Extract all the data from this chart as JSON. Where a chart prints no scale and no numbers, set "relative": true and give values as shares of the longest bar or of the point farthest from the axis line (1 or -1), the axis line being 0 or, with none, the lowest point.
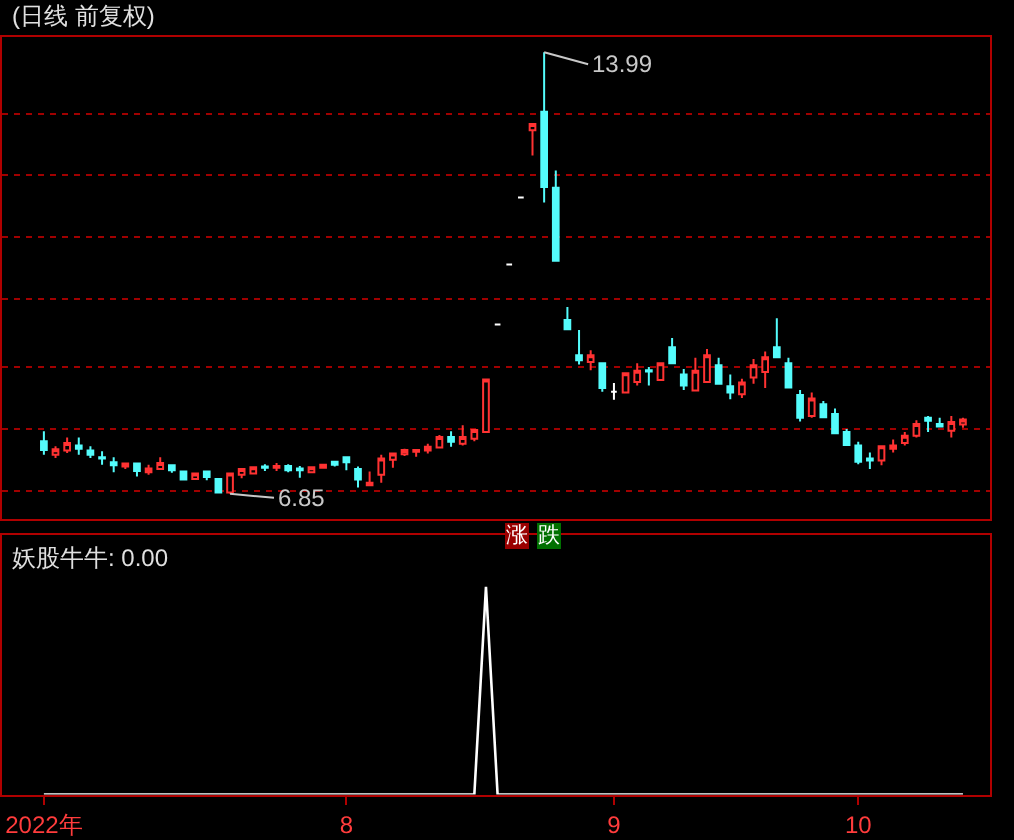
{
  "chart_data": [
    {
      "type": "candlestick",
      "title": "(日线 前复权)",
      "categories": [
        null,
        null,
        null,
        null,
        null,
        null,
        null,
        null,
        null,
        null,
        null,
        null,
        null,
        null,
        null,
        null,
        null,
        null,
        null,
        null,
        null,
        null,
        null,
        null,
        null,
        null,
        null,
        null,
        null,
        null,
        null,
        null,
        null,
        null,
        null,
        null,
        null,
        null,
        null,
        null,
        null,
        null,
        null,
        null,
        null,
        null,
        null,
        null,
        null,
        null,
        null,
        null,
        null,
        null,
        null,
        null,
        null,
        null,
        null,
        null,
        null,
        null,
        null,
        null,
        null,
        null,
        null,
        null,
        null,
        null,
        null,
        null,
        null,
        null,
        null,
        null,
        null,
        null,
        null,
        null
      ],
      "ohlc": [
        [
          7.7,
          7.86,
          7.48,
          7.56
        ],
        [
          7.48,
          7.62,
          7.43,
          7.57
        ],
        [
          7.55,
          7.76,
          7.51,
          7.67
        ],
        [
          7.63,
          7.76,
          7.48,
          7.58
        ],
        [
          7.55,
          7.62,
          7.43,
          7.48
        ],
        [
          7.44,
          7.54,
          7.32,
          7.42
        ],
        [
          7.36,
          7.44,
          7.2,
          7.31
        ],
        [
          7.29,
          7.34,
          7.25,
          7.34
        ],
        [
          7.34,
          7.34,
          7.13,
          7.22
        ],
        [
          7.2,
          7.32,
          7.16,
          7.26
        ],
        [
          7.25,
          7.44,
          7.25,
          7.35
        ],
        [
          7.31,
          7.31,
          7.19,
          7.23
        ],
        [
          7.21,
          7.21,
          7.08,
          7.08
        ],
        [
          7.09,
          7.18,
          7.09,
          7.18
        ],
        [
          7.21,
          7.21,
          7.07,
          7.12
        ],
        [
          7.09,
          7.09,
          6.87,
          6.87
        ],
        [
          6.87,
          7.18,
          6.85,
          7.18
        ],
        [
          7.16,
          7.25,
          7.1,
          7.25
        ],
        [
          7.18,
          7.28,
          7.18,
          7.28
        ],
        [
          7.29,
          7.33,
          7.22,
          7.27
        ],
        [
          7.27,
          7.35,
          7.22,
          7.3
        ],
        [
          7.3,
          7.33,
          7.2,
          7.23
        ],
        [
          7.26,
          7.3,
          7.11,
          7.23
        ],
        [
          7.2,
          7.28,
          7.2,
          7.28
        ],
        [
          7.27,
          7.32,
          7.27,
          7.32
        ],
        [
          7.37,
          7.37,
          7.29,
          7.32
        ],
        [
          7.44,
          7.44,
          7.23,
          7.36
        ],
        [
          7.25,
          7.29,
          6.95,
          7.08
        ],
        [
          6.99,
          7.21,
          6.99,
          7.03
        ],
        [
          7.16,
          7.48,
          7.03,
          7.42
        ],
        [
          7.4,
          7.5,
          7.27,
          7.5
        ],
        [
          7.49,
          7.58,
          7.46,
          7.56
        ],
        [
          7.53,
          7.56,
          7.45,
          7.56
        ],
        [
          7.55,
          7.66,
          7.5,
          7.61
        ],
        [
          7.6,
          7.8,
          7.6,
          7.77
        ],
        [
          7.77,
          7.86,
          7.61,
          7.69
        ],
        [
          7.66,
          7.96,
          7.63,
          7.77
        ],
        [
          7.74,
          7.88,
          7.7,
          7.88
        ],
        [
          7.85,
          8.7,
          7.85,
          8.7
        ],
        [
          9.59,
          9.59,
          9.59,
          9.59
        ],
        [
          10.56,
          10.56,
          10.56,
          10.56
        ],
        [
          11.64,
          11.64,
          11.64,
          11.64
        ],
        [
          12.73,
          12.83,
          12.32,
          12.83
        ],
        [
          13.03,
          13.99,
          11.56,
          11.81
        ],
        [
          11.8,
          12.08,
          10.62,
          10.62
        ],
        [
          9.66,
          9.87,
          9.51,
          9.51
        ],
        [
          9.09,
          9.5,
          8.94,
          9.01
        ],
        [
          8.98,
          9.17,
          8.85,
          9.09
        ],
        [
          8.96,
          8.96,
          8.5,
          8.56
        ],
        [
          8.5,
          8.64,
          8.37,
          8.5
        ],
        [
          8.49,
          8.8,
          8.49,
          8.8
        ],
        [
          8.66,
          8.96,
          8.6,
          8.84
        ],
        [
          8.85,
          8.9,
          8.6,
          8.83
        ],
        [
          8.69,
          8.96,
          8.69,
          8.96
        ],
        [
          9.22,
          9.37,
          8.96,
          8.96
        ],
        [
          8.78,
          8.87,
          8.53,
          8.6
        ],
        [
          8.52,
          9.05,
          8.52,
          8.84
        ],
        [
          8.66,
          9.19,
          8.66,
          9.09
        ],
        [
          8.93,
          9.05,
          8.63,
          8.63
        ],
        [
          8.59,
          8.78,
          8.38,
          8.49
        ],
        [
          8.46,
          8.71,
          8.4,
          8.65
        ],
        [
          8.73,
          9.03,
          8.63,
          8.93
        ],
        [
          8.82,
          9.15,
          8.56,
          9.06
        ],
        [
          9.22,
          9.69,
          9.06,
          9.06
        ],
        [
          8.96,
          9.05,
          8.57,
          8.57
        ],
        [
          8.45,
          8.53,
          8.02,
          8.08
        ],
        [
          8.11,
          8.49,
          8.08,
          8.39
        ],
        [
          8.3,
          8.35,
          8.09,
          8.09
        ],
        [
          8.14,
          8.23,
          7.83,
          7.83
        ],
        [
          7.85,
          7.9,
          7.64,
          7.64
        ],
        [
          7.63,
          7.69,
          7.33,
          7.37
        ],
        [
          7.42,
          7.52,
          7.25,
          7.39
        ],
        [
          7.39,
          7.62,
          7.31,
          7.62
        ],
        [
          7.58,
          7.73,
          7.52,
          7.63
        ],
        [
          7.67,
          7.85,
          7.63,
          7.79
        ],
        [
          7.79,
          8.04,
          7.76,
          7.98
        ],
        [
          8.08,
          8.11,
          7.85,
          8.03
        ],
        [
          7.98,
          8.08,
          7.94,
          7.94
        ],
        [
          7.87,
          8.11,
          7.76,
          8.01
        ],
        [
          7.97,
          8.08,
          7.92,
          8.05
        ]
      ],
      "colors": [
        "#54fcfc",
        "#ff3232",
        "#ff3232",
        "#54fcfc",
        "#54fcfc",
        "#54fcfc",
        "#54fcfc",
        "#ff3232",
        "#54fcfc",
        "#ff3232",
        "#ff3232",
        "#54fcfc",
        "#54fcfc",
        "#ff3232",
        "#54fcfc",
        "#54fcfc",
        "#ff3232",
        "#ff3232",
        "#ff3232",
        "#54fcfc",
        "#ff3232",
        "#54fcfc",
        "#54fcfc",
        "#ff3232",
        "#ff3232",
        "#54fcfc",
        "#54fcfc",
        "#54fcfc",
        "#ff3232",
        "#ff3232",
        "#ff3232",
        "#ff3232",
        "#ff3232",
        "#ff3232",
        "#ff3232",
        "#54fcfc",
        "#ff3232",
        "#ff3232",
        "#ff3232",
        "#ffffff",
        "#ffffff",
        "#ffffff",
        "#ff3232",
        "#54fcfc",
        "#54fcfc",
        "#54fcfc",
        "#54fcfc",
        "#ff3232",
        "#54fcfc",
        "#ffffff",
        "#ff3232",
        "#ff3232",
        "#54fcfc",
        "#ff3232",
        "#54fcfc",
        "#54fcfc",
        "#ff3232",
        "#ff3232",
        "#54fcfc",
        "#54fcfc",
        "#ff3232",
        "#ff3232",
        "#ff3232",
        "#54fcfc",
        "#54fcfc",
        "#54fcfc",
        "#ff3232",
        "#54fcfc",
        "#54fcfc",
        "#54fcfc",
        "#54fcfc",
        "#54fcfc",
        "#ff3232",
        "#ff3232",
        "#ff3232",
        "#ff3232",
        "#54fcfc",
        "#54fcfc",
        "#ff3232",
        "#ff3232"
      ],
      "ylim": [
        6.44,
        14.23
      ],
      "yticks": [
        {
          "value": 6.9,
          "label": null
        },
        {
          "value": 7.9,
          "label": null
        },
        {
          "value": 8.9,
          "label": null
        },
        {
          "value": 10.0,
          "label": null
        },
        {
          "value": 11.0,
          "label": null
        },
        {
          "value": 12.0,
          "label": null
        },
        {
          "value": 13.0,
          "label": null
        }
      ],
      "grid": "y",
      "tick_labels": false,
      "annotations": [
        "13.99",
        "6.85",
        "涨",
        "跌"
      ]
    },
    {
      "type": "line",
      "title": "妖股牛牛: 0.00",
      "categories": [
        "2022年",
        null,
        null,
        null,
        null,
        null,
        null,
        null,
        null,
        null,
        null,
        null,
        null,
        null,
        null,
        null,
        null,
        null,
        null,
        null,
        null,
        null,
        null,
        null,
        null,
        null,
        "8",
        null,
        null,
        null,
        null,
        null,
        null,
        null,
        null,
        null,
        null,
        null,
        null,
        null,
        null,
        null,
        null,
        null,
        null,
        null,
        null,
        null,
        null,
        "9",
        null,
        null,
        null,
        null,
        null,
        null,
        null,
        null,
        null,
        null,
        null,
        null,
        null,
        null,
        null,
        null,
        null,
        null,
        null,
        null,
        "10",
        null,
        null,
        null,
        null,
        null,
        null,
        null,
        null,
        null
      ],
      "values": [
        0,
        0,
        0,
        0,
        0,
        0,
        0,
        0,
        0,
        0,
        0,
        0,
        0,
        0,
        0,
        0,
        0,
        0,
        0,
        0,
        0,
        0,
        0,
        0,
        0,
        0,
        0,
        0,
        0,
        0,
        0,
        0,
        0,
        0,
        0,
        0,
        0,
        0,
        1,
        0,
        0,
        0,
        0,
        0,
        0,
        0,
        0,
        0,
        0,
        0,
        0,
        0,
        0,
        0,
        0,
        0,
        0,
        0,
        0,
        0,
        0,
        0,
        0,
        0,
        0,
        0,
        0,
        0,
        0,
        0,
        0,
        0,
        0,
        0,
        0,
        0,
        0,
        0,
        0,
        0
      ],
      "color": "#ffffff",
      "relative": true,
      "tick_labels": "x"
    }
  ]
}
